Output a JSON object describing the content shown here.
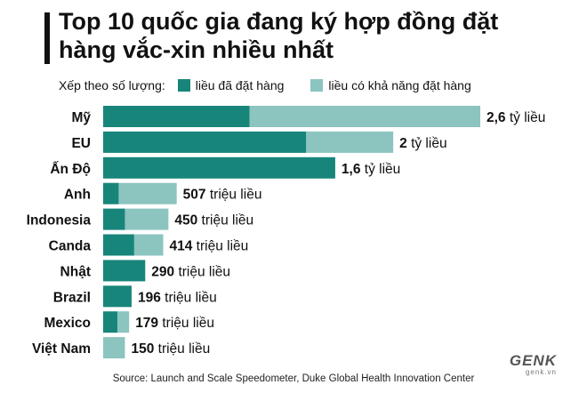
{
  "title": "Top 10 quốc gia đang ký hợp đồng đặt hàng vắc-xin nhiều nhất",
  "legend": {
    "prefix": "Xếp theo số lượng:",
    "ordered_label": "liều đã đặt hàng",
    "potential_label": "liều có khả năng đặt hàng"
  },
  "colors": {
    "ordered": "#18857a",
    "potential": "#8cc4c0"
  },
  "chart_data": {
    "type": "bar",
    "orientation": "horizontal",
    "stacked": true,
    "categories": [
      "Mỹ",
      "EU",
      "Ấn Độ",
      "Anh",
      "Indonesia",
      "Canda",
      "Nhật",
      "Brazil",
      "Mexico",
      "Việt Nam"
    ],
    "series": [
      {
        "name": "liều đã đặt hàng",
        "values": [
          1010,
          1400,
          1600,
          107,
          150,
          214,
          290,
          196,
          99,
          0
        ]
      },
      {
        "name": "liều có khả năng đặt hàng",
        "values": [
          1590,
          600,
          0,
          400,
          300,
          200,
          0,
          0,
          80,
          150
        ]
      }
    ],
    "total_labels": [
      {
        "num": "2,6",
        "unit": "tỷ liều"
      },
      {
        "num": "2",
        "unit": "tỷ liều"
      },
      {
        "num": "1,6",
        "unit": "tỷ liều"
      },
      {
        "num": "507",
        "unit": "triệu liều"
      },
      {
        "num": "450",
        "unit": "triệu liều"
      },
      {
        "num": "414",
        "unit": "triệu liều"
      },
      {
        "num": "290",
        "unit": "triệu liều"
      },
      {
        "num": "196",
        "unit": "triệu liều"
      },
      {
        "num": "179",
        "unit": "triệu liều"
      },
      {
        "num": "150",
        "unit": "triệu liều"
      }
    ],
    "xlim": [
      0,
      2600
    ],
    "grid": false,
    "legend_position": "top"
  },
  "source": "Source: Launch and Scale Speedometer, Duke Global Health Innovation Center",
  "brand": "GENK",
  "brand_sub": "genk.vn"
}
